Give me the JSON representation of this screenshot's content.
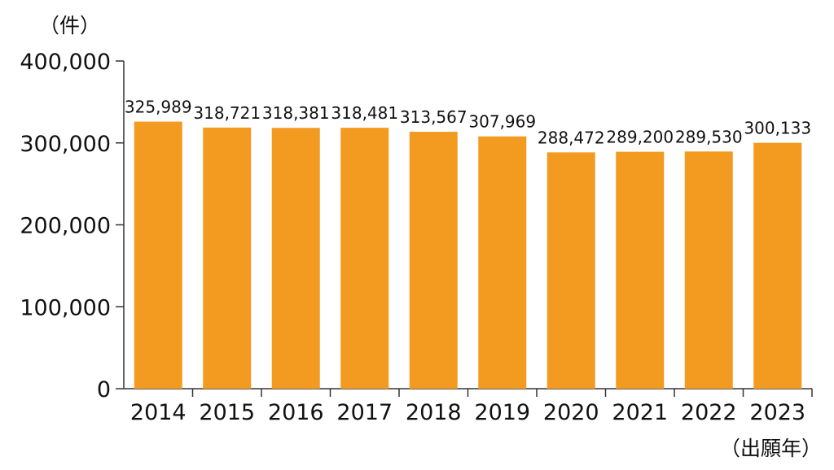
{
  "chart_data": {
    "type": "bar",
    "y_unit_label": "（件）",
    "x_unit_label": "（出願年）",
    "categories": [
      "2014",
      "2015",
      "2016",
      "2017",
      "2018",
      "2019",
      "2020",
      "2021",
      "2022",
      "2023"
    ],
    "values": [
      325989,
      318721,
      318381,
      318481,
      313567,
      307969,
      288472,
      289200,
      289530,
      300133
    ],
    "value_labels": [
      "325,989",
      "318,721",
      "318,381",
      "318,481",
      "313,567",
      "307,969",
      "288,472",
      "289,200",
      "289,530",
      "300,133"
    ],
    "ylim": [
      0,
      400000
    ],
    "y_ticks": [
      0,
      100000,
      200000,
      300000,
      400000
    ],
    "y_tick_labels": [
      "0",
      "100,000",
      "200,000",
      "300,000",
      "400,000"
    ],
    "grid": false,
    "legend": "none",
    "bar_color": "#F39A21",
    "axis_color": "#333333",
    "text_color": "#111111"
  }
}
